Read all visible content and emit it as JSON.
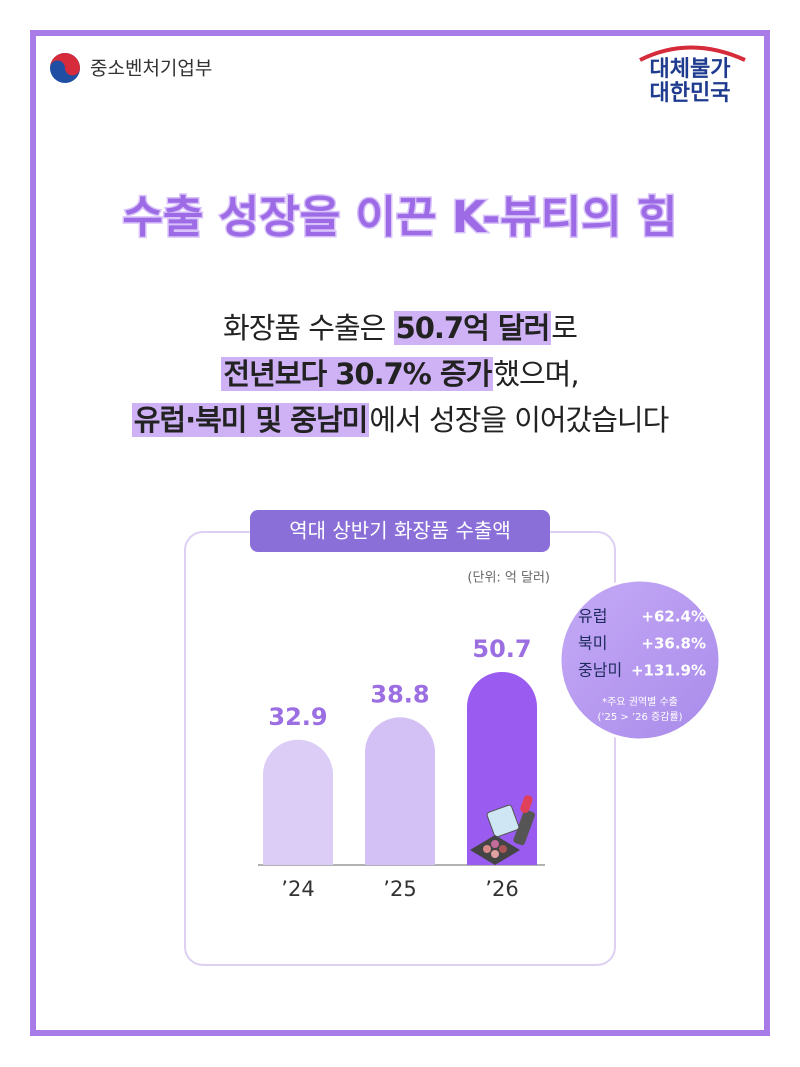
{
  "header": {
    "ministry": "중소벤처기업부",
    "slogan_top": "대체불가",
    "slogan_bottom": "대한민국"
  },
  "title": "수출 성장을 이끈 K-뷰티의 힘",
  "body": [
    [
      {
        "text": "화장품 수출은 ",
        "highlight": false
      },
      {
        "text": "50.7억 달러",
        "highlight": true
      },
      {
        "text": "로",
        "highlight": false
      }
    ],
    [
      {
        "text": "전년보다 30.7% 증가",
        "highlight": true
      },
      {
        "text": "했으며,",
        "highlight": false
      }
    ],
    [
      {
        "text": "유럽·북미 및 중남미",
        "highlight": true
      },
      {
        "text": "에서 성장을 이어갔습니다",
        "highlight": false
      }
    ]
  ],
  "chart_data": {
    "type": "bar",
    "title": "역대 상반기 화장품 수출액",
    "unit": "(단위: 억 달러)",
    "categories": [
      "’24",
      "’25",
      "’26"
    ],
    "values": [
      32.9,
      38.8,
      50.7
    ],
    "colors": [
      "#dccdf7",
      "#d3c1f5",
      "#9a5cf0"
    ],
    "label_color": "#9b6fe2"
  },
  "callout": {
    "rows": [
      {
        "region": "유럽",
        "change": "+62.4%"
      },
      {
        "region": "북미",
        "change": "+36.8%"
      },
      {
        "region": "중남미",
        "change": "+131.9%"
      }
    ],
    "note_top": "*주요 권역별 수출",
    "note_bottom": "(’25 > ’26 증감률)"
  }
}
